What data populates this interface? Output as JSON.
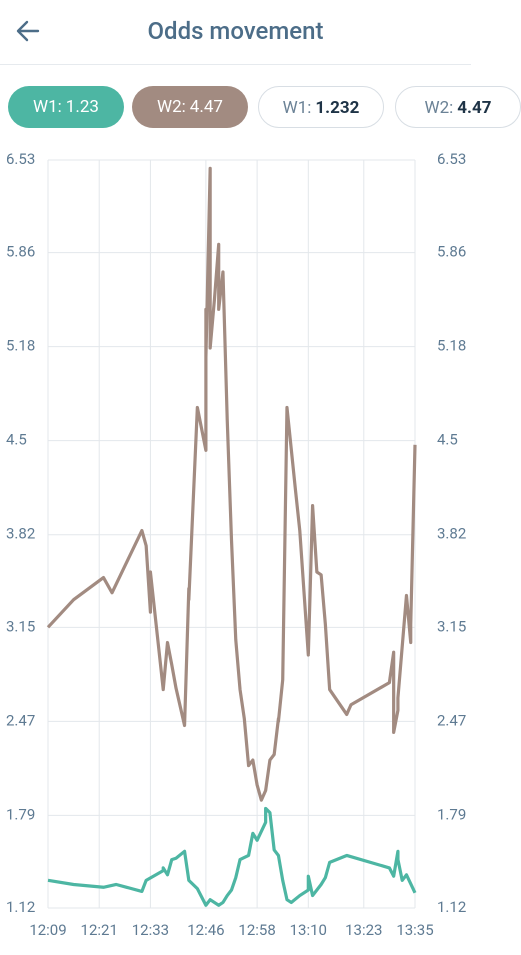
{
  "header": {
    "title": "Odds movement"
  },
  "tabs": [
    {
      "label": "W1:",
      "value": "1.23"
    },
    {
      "label": "W2:",
      "value": "4.47"
    },
    {
      "label": "W1:",
      "value": "1.232"
    },
    {
      "label": "W2:",
      "value": "4.47"
    }
  ],
  "chart_data": {
    "type": "line",
    "xlim": [
      "12:09",
      "13:35"
    ],
    "xticks": [
      "12:09",
      "12:21",
      "12:33",
      "12:46",
      "12:58",
      "13:10",
      "13:23",
      "13:35"
    ],
    "ylim": [
      1.12,
      6.53
    ],
    "yticks": [
      1.12,
      1.79,
      2.47,
      3.15,
      3.82,
      4.5,
      5.18,
      5.86,
      6.53
    ],
    "y2lim": [
      1.12,
      6.53
    ],
    "y2ticks": [
      1.12,
      1.79,
      2.47,
      3.15,
      3.82,
      4.5,
      5.18,
      5.86,
      6.53
    ],
    "grid": true,
    "series": [
      {
        "name": "W2",
        "color": "#a28b81",
        "x": [
          "12:09",
          "12:15",
          "12:22",
          "12:24",
          "12:31",
          "12:32",
          "12:33",
          "12:33",
          "12:36",
          "12:37",
          "12:38",
          "12:39",
          "12:41",
          "12:42",
          "12:42",
          "12:44",
          "12:46",
          "12:46",
          "12:46",
          "12:47",
          "12:47",
          "12:48",
          "12:49",
          "12:49",
          "12:50",
          "12:51",
          "12:52",
          "12:53",
          "12:54",
          "12:55",
          "12:56",
          "12:57",
          "12:58",
          "12:59",
          "13:00",
          "13:01",
          "13:02",
          "13:03",
          "13:03",
          "13:04",
          "13:05",
          "13:07",
          "13:08",
          "13:10",
          "13:11",
          "13:12",
          "13:13",
          "13:14",
          "13:15",
          "13:19",
          "13:20",
          "13:29",
          "13:30",
          "13:30",
          "13:31",
          "13:31",
          "13:33",
          "13:34",
          "13:34",
          "13:35"
        ],
        "values": [
          3.15,
          3.35,
          3.51,
          3.4,
          3.85,
          3.74,
          3.26,
          3.55,
          2.7,
          3.04,
          2.88,
          2.71,
          2.44,
          3.43,
          3.35,
          4.74,
          4.43,
          5.45,
          5.1,
          6.47,
          5.17,
          5.52,
          5.92,
          5.45,
          5.72,
          4.65,
          3.78,
          3.06,
          2.7,
          2.49,
          2.15,
          2.19,
          2.01,
          1.9,
          1.97,
          2.19,
          2.23,
          2.49,
          2.47,
          2.77,
          4.74,
          4.14,
          3.85,
          2.95,
          4.03,
          3.55,
          3.53,
          3.17,
          2.7,
          2.52,
          2.59,
          2.75,
          2.97,
          2.39,
          2.55,
          2.64,
          3.38,
          3.04,
          3.17,
          4.47
        ]
      },
      {
        "name": "W1",
        "color": "#4db6a3",
        "x": [
          "12:09",
          "12:15",
          "12:22",
          "12:25",
          "12:31",
          "12:32",
          "12:36",
          "12:36",
          "12:37",
          "12:38",
          "12:39",
          "12:41",
          "12:42",
          "12:44",
          "12:46",
          "12:47",
          "12:49",
          "12:50",
          "12:51",
          "12:52",
          "12:53",
          "12:54",
          "12:56",
          "12:57",
          "12:58",
          "13:00",
          "13:00",
          "13:01",
          "13:02",
          "13:03",
          "13:04",
          "13:05",
          "13:06",
          "13:08",
          "13:10",
          "13:10",
          "13:11",
          "13:13",
          "13:14",
          "13:15",
          "13:19",
          "13:29",
          "13:30",
          "13:31",
          "13:31",
          "13:32",
          "13:33",
          "13:35"
        ],
        "values": [
          1.32,
          1.29,
          1.27,
          1.29,
          1.24,
          1.32,
          1.39,
          1.41,
          1.36,
          1.47,
          1.48,
          1.53,
          1.32,
          1.26,
          1.14,
          1.18,
          1.14,
          1.16,
          1.21,
          1.25,
          1.34,
          1.47,
          1.5,
          1.66,
          1.61,
          1.74,
          1.84,
          1.81,
          1.54,
          1.5,
          1.32,
          1.18,
          1.16,
          1.21,
          1.25,
          1.35,
          1.21,
          1.29,
          1.34,
          1.45,
          1.5,
          1.41,
          1.35,
          1.53,
          1.47,
          1.32,
          1.36,
          1.23
        ]
      }
    ]
  }
}
